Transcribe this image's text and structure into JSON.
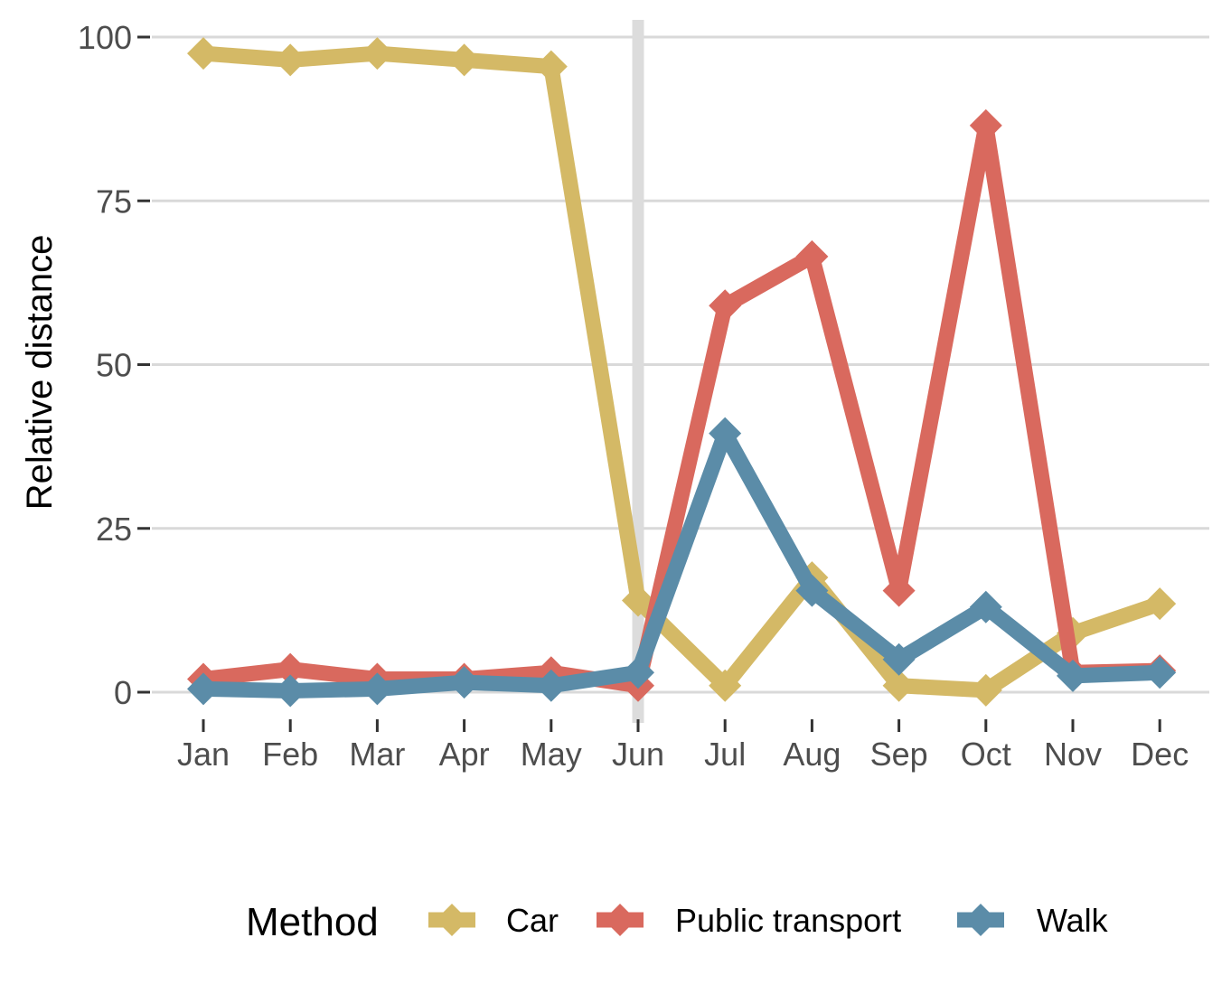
{
  "chart_data": {
    "type": "line",
    "categories": [
      "Jan",
      "Feb",
      "Mar",
      "Apr",
      "May",
      "Jun",
      "Jul",
      "Aug",
      "Sep",
      "Oct",
      "Nov",
      "Dec"
    ],
    "ylabel": "Relative distance",
    "xlabel": "",
    "ylim": [
      -4,
      102
    ],
    "yticks": [
      0,
      25,
      50,
      75,
      100
    ],
    "grid": "horizontal",
    "reference_line": {
      "category": "Jun",
      "color": "#dcdcdc"
    },
    "legend": {
      "title": "Method",
      "position": "bottom"
    },
    "series": [
      {
        "name": "Car",
        "color": "#d4b966",
        "values": [
          97.5,
          96.5,
          97.5,
          96.5,
          95.5,
          14.0,
          1.0,
          17.5,
          1.0,
          0.3,
          9.0,
          13.5
        ]
      },
      {
        "name": "Public transport",
        "color": "#d9695e",
        "values": [
          2.0,
          3.5,
          2.0,
          2.0,
          3.0,
          1.0,
          59.0,
          66.5,
          15.5,
          86.5,
          3.0,
          3.3
        ]
      },
      {
        "name": "Walk",
        "color": "#5b8ca8",
        "values": [
          0.5,
          0.2,
          0.5,
          1.5,
          1.0,
          3.0,
          39.5,
          15.5,
          5.0,
          13.0,
          2.5,
          3.0
        ]
      }
    ]
  }
}
